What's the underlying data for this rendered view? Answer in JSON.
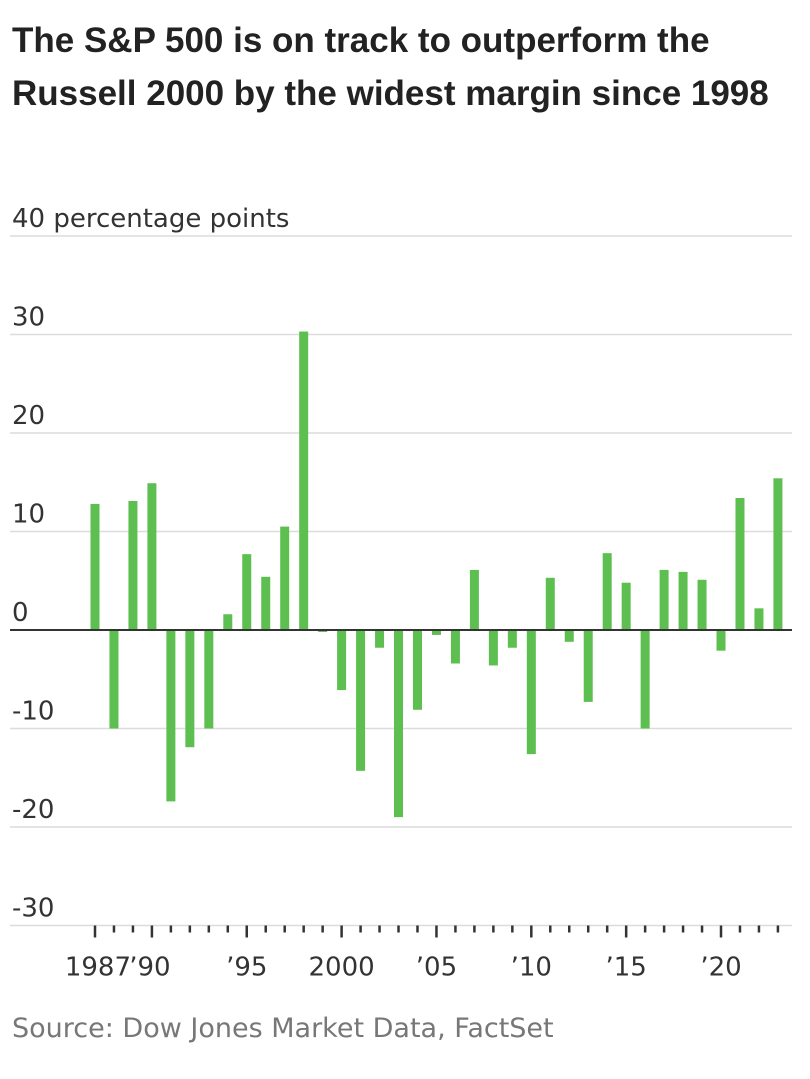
{
  "chart_data": {
    "type": "bar",
    "title": "The S&P 500 is on track to outperform the Russell 2000 by the widest margin since 1998",
    "ylabel": "40 percentage points",
    "xlabel": "",
    "ylim": [
      -30,
      40
    ],
    "yticks": [
      {
        "value": 40,
        "label": "40 percentage points"
      },
      {
        "value": 30,
        "label": "30"
      },
      {
        "value": 20,
        "label": "20"
      },
      {
        "value": 10,
        "label": "10"
      },
      {
        "value": 0,
        "label": "0"
      },
      {
        "value": -10,
        "label": "-10"
      },
      {
        "value": -20,
        "label": "-20"
      },
      {
        "value": -30,
        "label": "-30"
      }
    ],
    "xticks": [
      {
        "year": 1987,
        "label": "1987"
      },
      {
        "year": 1990,
        "label": "’90"
      },
      {
        "year": 1995,
        "label": "’95"
      },
      {
        "year": 2000,
        "label": "2000"
      },
      {
        "year": 2005,
        "label": "’05"
      },
      {
        "year": 2010,
        "label": "’10"
      },
      {
        "year": 2015,
        "label": "’15"
      },
      {
        "year": 2020,
        "label": "’20"
      }
    ],
    "grid": true,
    "bar_color": "#5cbf4f",
    "categories": [
      1987,
      1988,
      1989,
      1990,
      1991,
      1992,
      1993,
      1994,
      1995,
      1996,
      1997,
      1998,
      1999,
      2000,
      2001,
      2002,
      2003,
      2004,
      2005,
      2006,
      2007,
      2008,
      2009,
      2010,
      2011,
      2012,
      2013,
      2014,
      2015,
      2016,
      2017,
      2018,
      2019,
      2020,
      2021,
      2022,
      2023
    ],
    "values": [
      12.8,
      -10.0,
      13.1,
      14.9,
      -17.4,
      -11.9,
      -10.0,
      1.6,
      7.7,
      5.4,
      10.5,
      30.3,
      -0.2,
      -6.1,
      -14.3,
      -1.8,
      -19.0,
      -8.1,
      -0.5,
      -3.4,
      6.1,
      -3.6,
      -1.8,
      -12.6,
      5.3,
      -1.2,
      -7.3,
      7.8,
      4.8,
      -10.0,
      6.1,
      5.9,
      5.1,
      -2.1,
      13.4,
      2.2,
      15.4
    ]
  },
  "source": "Source: Dow Jones Market Data, FactSet"
}
